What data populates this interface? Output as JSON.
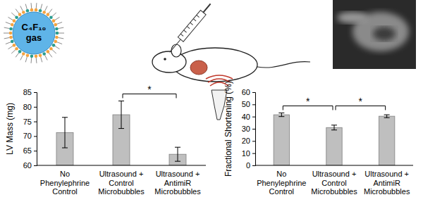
{
  "illustration": {
    "bubble_label": "C₄F₁₀\ngas"
  },
  "chart_data": [
    {
      "type": "bar",
      "y_label": "LV Mass (mg)",
      "categories": [
        "No\nPhenylephrine\nControl",
        "Ultrasound +\nControl\nMicrobubbles",
        "Ultrasound +\nAntimiR\nMicrobubbles"
      ],
      "values": [
        71.2,
        77.3,
        63.8
      ],
      "errors": [
        5.2,
        4.7,
        2.4
      ],
      "color": "#bfbfbf",
      "ylim": [
        60,
        85
      ],
      "yticks": [
        60,
        65,
        70,
        75,
        80,
        85
      ],
      "grid": false,
      "brackets": [
        {
          "from": 1,
          "to": 2,
          "label": "*"
        }
      ]
    },
    {
      "type": "bar",
      "y_label": "Fractional Shortening (%)",
      "categories": [
        "No\nPhenylephrine\nControl",
        "Ultrasound +\nControl\nMicrobubbles",
        "Ultrasound +\nAntimiR\nMicrobubbles"
      ],
      "values": [
        41.5,
        31.0,
        40.3
      ],
      "errors": [
        1.5,
        2.0,
        1.2
      ],
      "color": "#bfbfbf",
      "ylim": [
        0,
        60
      ],
      "yticks": [
        0,
        10,
        20,
        30,
        40,
        50,
        60
      ],
      "grid": false,
      "brackets": [
        {
          "from": 0,
          "to": 1,
          "label": "*"
        },
        {
          "from": 1,
          "to": 2,
          "label": "*"
        }
      ]
    }
  ]
}
